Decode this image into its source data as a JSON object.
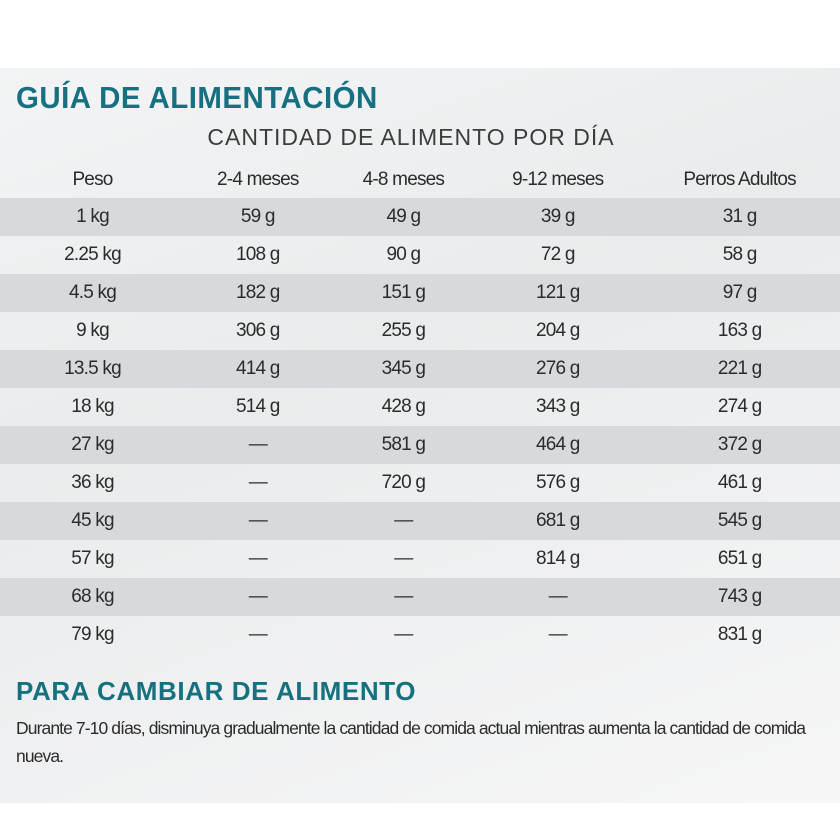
{
  "title": "GUÍA DE ALIMENTACIÓN",
  "subtitle": "CANTIDAD DE ALIMENTO POR DÍA",
  "table": {
    "headers": [
      "Peso",
      "2-4 meses",
      "4-8 meses",
      "9-12 meses",
      "Perros Adultos"
    ],
    "rows": [
      [
        "1 kg",
        "59 g",
        "49 g",
        "39 g",
        "31 g"
      ],
      [
        "2.25 kg",
        "108 g",
        "90 g",
        "72 g",
        "58 g"
      ],
      [
        "4.5 kg",
        "182 g",
        "151 g",
        "121 g",
        "97 g"
      ],
      [
        "9 kg",
        "306 g",
        "255 g",
        "204 g",
        "163 g"
      ],
      [
        "13.5 kg",
        "414 g",
        "345 g",
        "276 g",
        "221 g"
      ],
      [
        "18 kg",
        "514 g",
        "428 g",
        "343 g",
        "274 g"
      ],
      [
        "27 kg",
        "—",
        "581 g",
        "464 g",
        "372 g"
      ],
      [
        "36 kg",
        "—",
        "720 g",
        "576 g",
        "461 g"
      ],
      [
        "45 kg",
        "—",
        "—",
        "681 g",
        "545 g"
      ],
      [
        "57 kg",
        "—",
        "—",
        "814 g",
        "651 g"
      ],
      [
        "68 kg",
        "—",
        "—",
        "—",
        "743 g"
      ],
      [
        "79 kg",
        "—",
        "—",
        "—",
        "831 g"
      ]
    ]
  },
  "section": {
    "title": "PARA CAMBIAR DE ALIMENTO",
    "body": "Durante 7-10 días, disminuya gradualmente la cantidad de comida actual mientras aumenta la cantidad de comida nueva."
  },
  "colors": {
    "accent": "#17707f",
    "row_shade": "#d6dadd"
  }
}
